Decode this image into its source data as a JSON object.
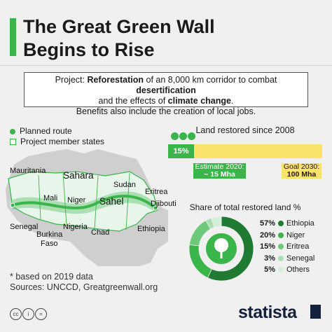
{
  "header": {
    "title_line1": "The Great Green Wall",
    "title_line2": "Begins to Rise"
  },
  "project": {
    "p1": "Project: ",
    "b1": "Reforestation",
    "p2": " of an 8,000 km corridor to combat ",
    "b2": "desertification",
    "p3": "and the effects of ",
    "b3": "climate change",
    "p4": ".",
    "line3": "Benefits also include the creation of local jobs."
  },
  "legend": {
    "planned_route": "Planned route",
    "member_states": "Project member states"
  },
  "map_labels": {
    "mauritania": "Mauritania",
    "sahara": "Sahara",
    "mali": "Mali",
    "niger": "Niger",
    "sahel": "Sahel",
    "sudan": "Sudan",
    "eritrea": "Eritrea",
    "djibouti": "Djibouti",
    "senegal": "Senegal",
    "burkina": "Burkina",
    "faso": "Faso",
    "nigeria": "Nigeria",
    "chad": "Chad",
    "ethiopia": "Ethiopia"
  },
  "chart_data": [
    {
      "type": "bar",
      "title": "Land restored since 2008",
      "unit": "Mha",
      "value_label": "15%",
      "value_fraction": 0.15,
      "estimate_label": "Estimate 2020:",
      "estimate_value": "~ 15 Mha",
      "goal_label": "Goal 2030:",
      "goal_value": "100 Mha",
      "values": [
        15,
        100
      ]
    },
    {
      "type": "pie",
      "title": "Share of total restored land %",
      "categories": [
        "Ethiopia",
        "Niger",
        "Eritrea",
        "Senegal",
        "Others"
      ],
      "values": [
        57,
        20,
        15,
        3,
        5
      ],
      "labels": [
        "57%",
        "20%",
        "15%",
        "3%",
        "5%"
      ],
      "colors": [
        "#1f7a32",
        "#3ab54a",
        "#6cc97a",
        "#a9dfb2",
        "#d4efd8"
      ]
    }
  ],
  "footer": {
    "note": "* based on 2019 data",
    "sources": "Sources: UNCCD, Greatgreenwall.org",
    "brand": "statista",
    "cc1": "cc",
    "cc2": "i",
    "cc3": "="
  },
  "colors": {
    "accent": "#3ab54a",
    "goal": "#fbe36b",
    "navy": "#14213d"
  }
}
